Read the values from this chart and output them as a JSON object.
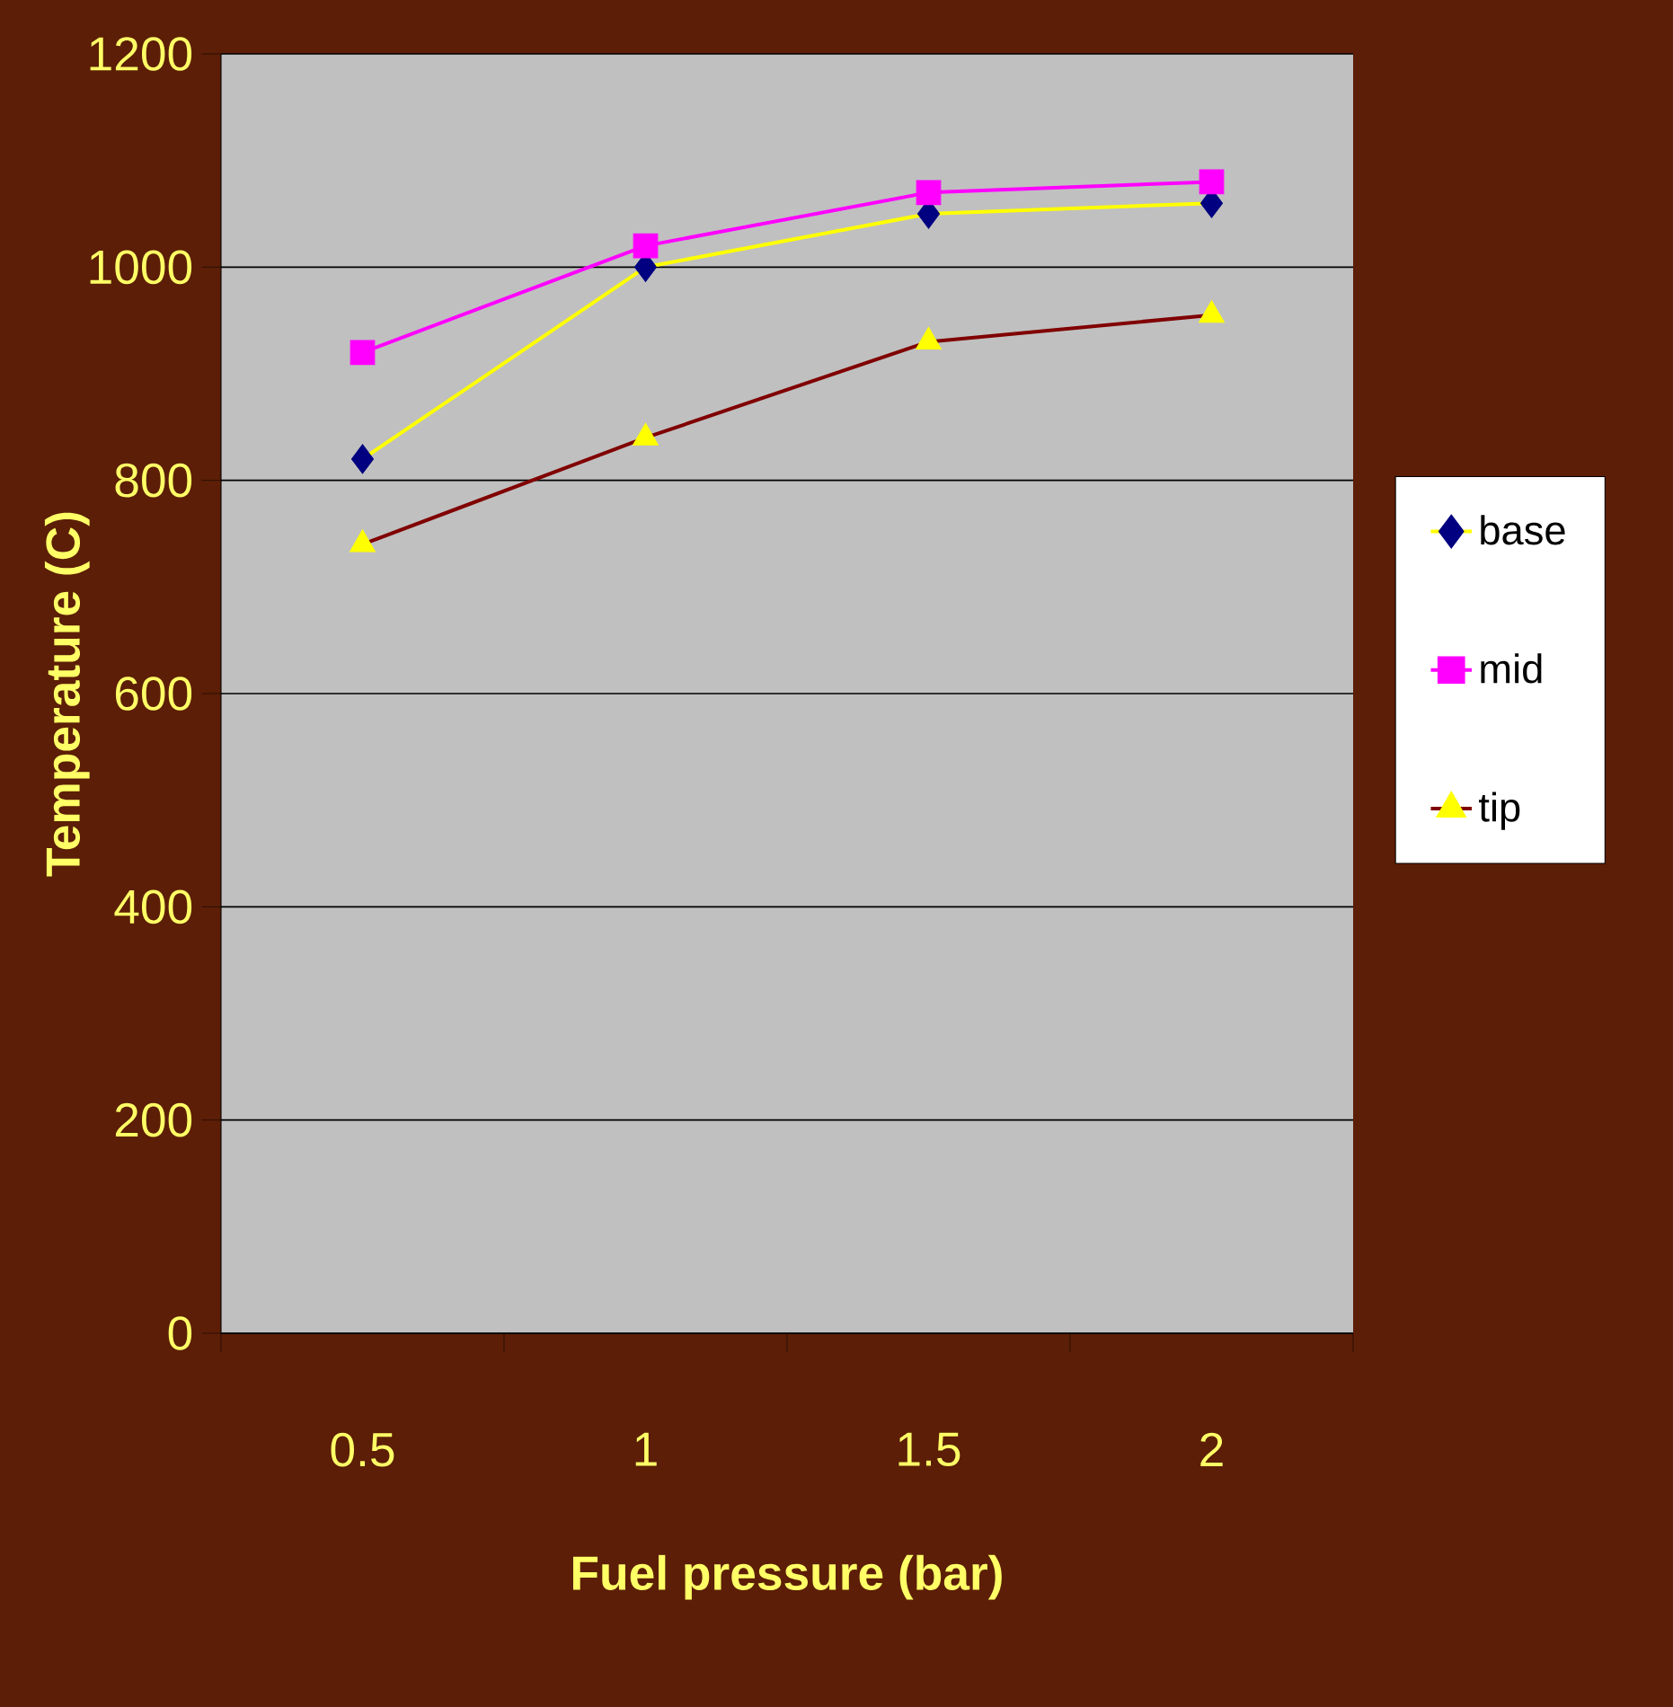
{
  "chart_data": {
    "type": "line",
    "xlabel": "Fuel pressure (bar)",
    "ylabel": "Temperature (C)",
    "categories": [
      "0.5",
      "1",
      "1.5",
      "2"
    ],
    "series": [
      {
        "name": "base",
        "color": "#ffff00",
        "colors": [
          "#000080",
          "#000080",
          "#000080",
          "#000080"
        ],
        "marker": "diamond",
        "values": [
          820,
          1000,
          1050,
          1060
        ]
      },
      {
        "name": "mid",
        "color": "#ff00ff",
        "colors": [
          "#ff00ff",
          "#ff00ff",
          "#ff00ff",
          "#ff00ff"
        ],
        "marker": "square",
        "values": [
          920,
          1020,
          1070,
          1080
        ]
      },
      {
        "name": "tip",
        "color": "#800000",
        "colors": [
          "#ffff00",
          "#ffff00",
          "#ffff00",
          "#ffff00"
        ],
        "marker": "triangle",
        "values": [
          740,
          840,
          930,
          955
        ]
      }
    ],
    "ylim": [
      0,
      1200
    ],
    "yticks": [
      0,
      200,
      400,
      600,
      800,
      1000,
      1200
    ],
    "grid": "y",
    "legend": "right"
  }
}
